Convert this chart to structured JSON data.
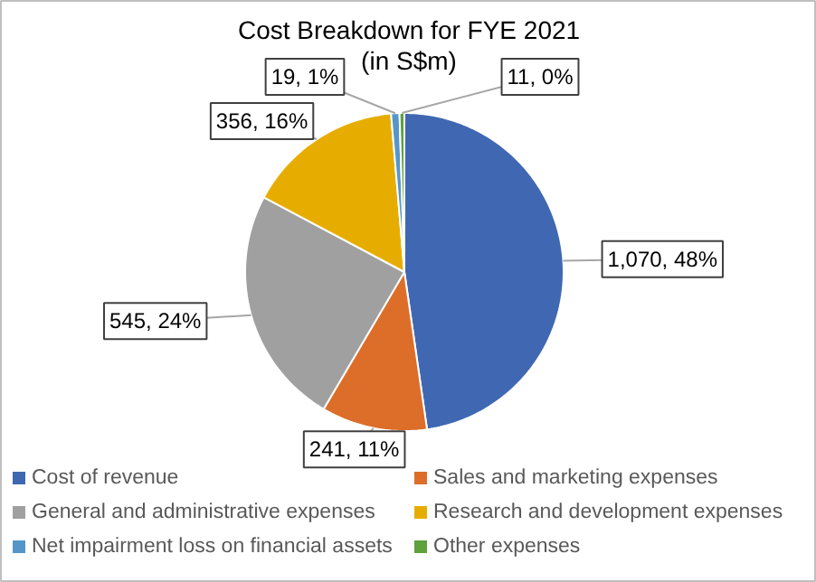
{
  "chart_data": {
    "type": "pie",
    "title": "Cost Breakdown for FYE 2021",
    "subtitle": "(in S$m)",
    "categories": [
      "Cost of revenue",
      "Sales and marketing expenses",
      "General and administrative expenses",
      "Research and development expenses",
      "Net impairment loss on financial assets",
      "Other expenses"
    ],
    "values": [
      1070,
      241,
      545,
      356,
      19,
      11
    ],
    "colors": [
      "#4068b2",
      "#dc6e29",
      "#a0a0a0",
      "#e6ad00",
      "#5596c8",
      "#5ea13d"
    ],
    "value_labels": [
      "1,070, 48%",
      "241, 11%",
      "545, 24%",
      "356, 16%",
      "19, 1%",
      "11, 0%"
    ],
    "legend": "bottom"
  }
}
